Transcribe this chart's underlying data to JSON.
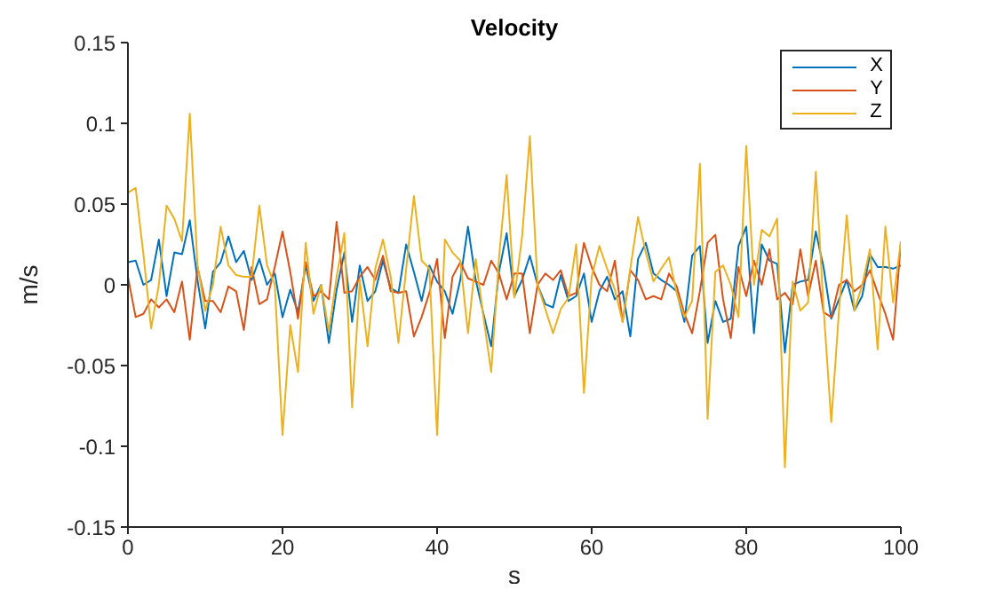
{
  "chart_data": {
    "type": "line",
    "title": "Velocity",
    "xlabel": "s",
    "ylabel": "m/s",
    "x": [
      0,
      1,
      2,
      3,
      4,
      5,
      6,
      7,
      8,
      9,
      10,
      11,
      12,
      13,
      14,
      15,
      16,
      17,
      18,
      19,
      20,
      21,
      22,
      23,
      24,
      25,
      26,
      27,
      28,
      29,
      30,
      31,
      32,
      33,
      34,
      35,
      36,
      37,
      38,
      39,
      40,
      41,
      42,
      43,
      44,
      45,
      46,
      47,
      48,
      49,
      50,
      51,
      52,
      53,
      54,
      55,
      56,
      57,
      58,
      59,
      60,
      61,
      62,
      63,
      64,
      65,
      66,
      67,
      68,
      69,
      70,
      71,
      72,
      73,
      74,
      75,
      76,
      77,
      78,
      79,
      80,
      81,
      82,
      83,
      84,
      85,
      86,
      87,
      88,
      89,
      90,
      91,
      92,
      93,
      94,
      95,
      96,
      97,
      98,
      99,
      100
    ],
    "series": [
      {
        "name": "X",
        "color": "#0072bd",
        "values": [
          0.014,
          0.015,
          0,
          0.003,
          0.028,
          -0.007,
          0.02,
          0.019,
          0.04,
          0.003,
          -0.027,
          0.008,
          0.014,
          0.03,
          0.014,
          0.021,
          0.003,
          0.016,
          0,
          0.007,
          -0.02,
          -0.003,
          -0.017,
          0.012,
          -0.01,
          0,
          -0.036,
          -0.003,
          0.02,
          -0.023,
          0.012,
          -0.01,
          -0.004,
          0.015,
          -0.002,
          -0.005,
          0.025,
          0.008,
          -0.01,
          0.012,
          0.002,
          -0.004,
          -0.018,
          0.003,
          0.036,
          0.003,
          -0.018,
          -0.038,
          0.008,
          0.032,
          -0.007,
          0.003,
          0.018,
          0,
          -0.012,
          -0.014,
          0.006,
          -0.01,
          -0.007,
          0.007,
          -0.023,
          -0.004,
          0.005,
          -0.009,
          -0.004,
          -0.032,
          0.016,
          0.026,
          0.007,
          0.003,
          0,
          -0.004,
          -0.023,
          0.018,
          0.024,
          -0.036,
          -0.01,
          -0.023,
          -0.021,
          0.024,
          0.036,
          -0.03,
          0.025,
          0.015,
          0.013,
          -0.042,
          0,
          0.002,
          0.003,
          0.033,
          0.011,
          -0.021,
          -0.009,
          0.003,
          -0.016,
          -0.007,
          0.019,
          0.011,
          0.011,
          0.01,
          0.012
        ]
      },
      {
        "name": "Y",
        "color": "#d95319",
        "values": [
          0.005,
          -0.02,
          -0.018,
          -0.009,
          -0.014,
          -0.009,
          -0.017,
          0.002,
          -0.034,
          0.011,
          -0.01,
          -0.01,
          -0.017,
          -0.001,
          -0.004,
          -0.028,
          0.011,
          -0.012,
          -0.009,
          0.011,
          0.033,
          0.008,
          -0.021,
          0.014,
          -0.007,
          -0.004,
          -0.009,
          0.039,
          -0.005,
          -0.004,
          0.005,
          0.011,
          0.003,
          0.018,
          -0.004,
          -0.005,
          -0.004,
          -0.032,
          -0.02,
          -0.005,
          0.016,
          -0.033,
          0.005,
          0.014,
          0.004,
          0.002,
          0,
          0.015,
          0.007,
          -0.009,
          0.007,
          0.007,
          -0.03,
          0,
          0.007,
          0.003,
          0.009,
          -0.007,
          -0.005,
          0.026,
          0.011,
          0,
          -0.004,
          0.015,
          -0.023,
          0.009,
          0.003,
          -0.009,
          -0.007,
          -0.009,
          0.007,
          -0.001,
          -0.018,
          -0.03,
          -0.004,
          0.026,
          0.031,
          -0.009,
          -0.033,
          0.011,
          -0.007,
          0.015,
          0,
          0.022,
          -0.009,
          -0.005,
          -0.012,
          0.022,
          -0.007,
          0.015,
          -0.017,
          -0.02,
          0,
          0.003,
          -0.004,
          0,
          0.009,
          -0.005,
          -0.018,
          -0.034,
          0.026
        ]
      },
      {
        "name": "Z",
        "color": "#edb120",
        "values": [
          0.057,
          0.06,
          0.019,
          -0.027,
          0,
          0.049,
          0.041,
          0.027,
          0.106,
          0.012,
          -0.016,
          0,
          0.036,
          0.012,
          0.006,
          0.005,
          0.005,
          0.049,
          0.012,
          0,
          -0.093,
          -0.025,
          -0.054,
          0.026,
          -0.018,
          0,
          -0.029,
          0.005,
          0.032,
          -0.076,
          0.003,
          -0.038,
          0.01,
          0.028,
          0.005,
          -0.036,
          0.01,
          0.055,
          0.015,
          0.01,
          -0.093,
          0.028,
          0.02,
          0.015,
          -0.03,
          0.016,
          -0.02,
          -0.054,
          0.016,
          0.068,
          -0.008,
          0.03,
          0.092,
          0,
          -0.015,
          -0.03,
          -0.015,
          -0.008,
          0.025,
          -0.067,
          0.005,
          0.024,
          0.01,
          -0.003,
          -0.023,
          0.01,
          0.042,
          0.02,
          0.002,
          0.01,
          0.017,
          -0.005,
          -0.02,
          -0.01,
          0.075,
          -0.083,
          0.008,
          0.012,
          0,
          -0.02,
          0.086,
          0,
          0.034,
          0.03,
          0.041,
          -0.113,
          0.002,
          -0.016,
          -0.011,
          0.07,
          -0.014,
          -0.085,
          -0.016,
          0.043,
          -0.016,
          0,
          0.022,
          -0.04,
          0.036,
          -0.011,
          0.027
        ]
      }
    ],
    "xlim": [
      0,
      100
    ],
    "xticks": [
      0,
      20,
      40,
      60,
      80,
      100
    ],
    "ylim": [
      -0.15,
      0.15
    ],
    "yticks": [
      -0.15,
      -0.1,
      -0.05,
      0,
      0.05,
      0.1,
      0.15
    ],
    "grid": false,
    "legend": "top right",
    "marker": "none",
    "line_style": "solid"
  }
}
